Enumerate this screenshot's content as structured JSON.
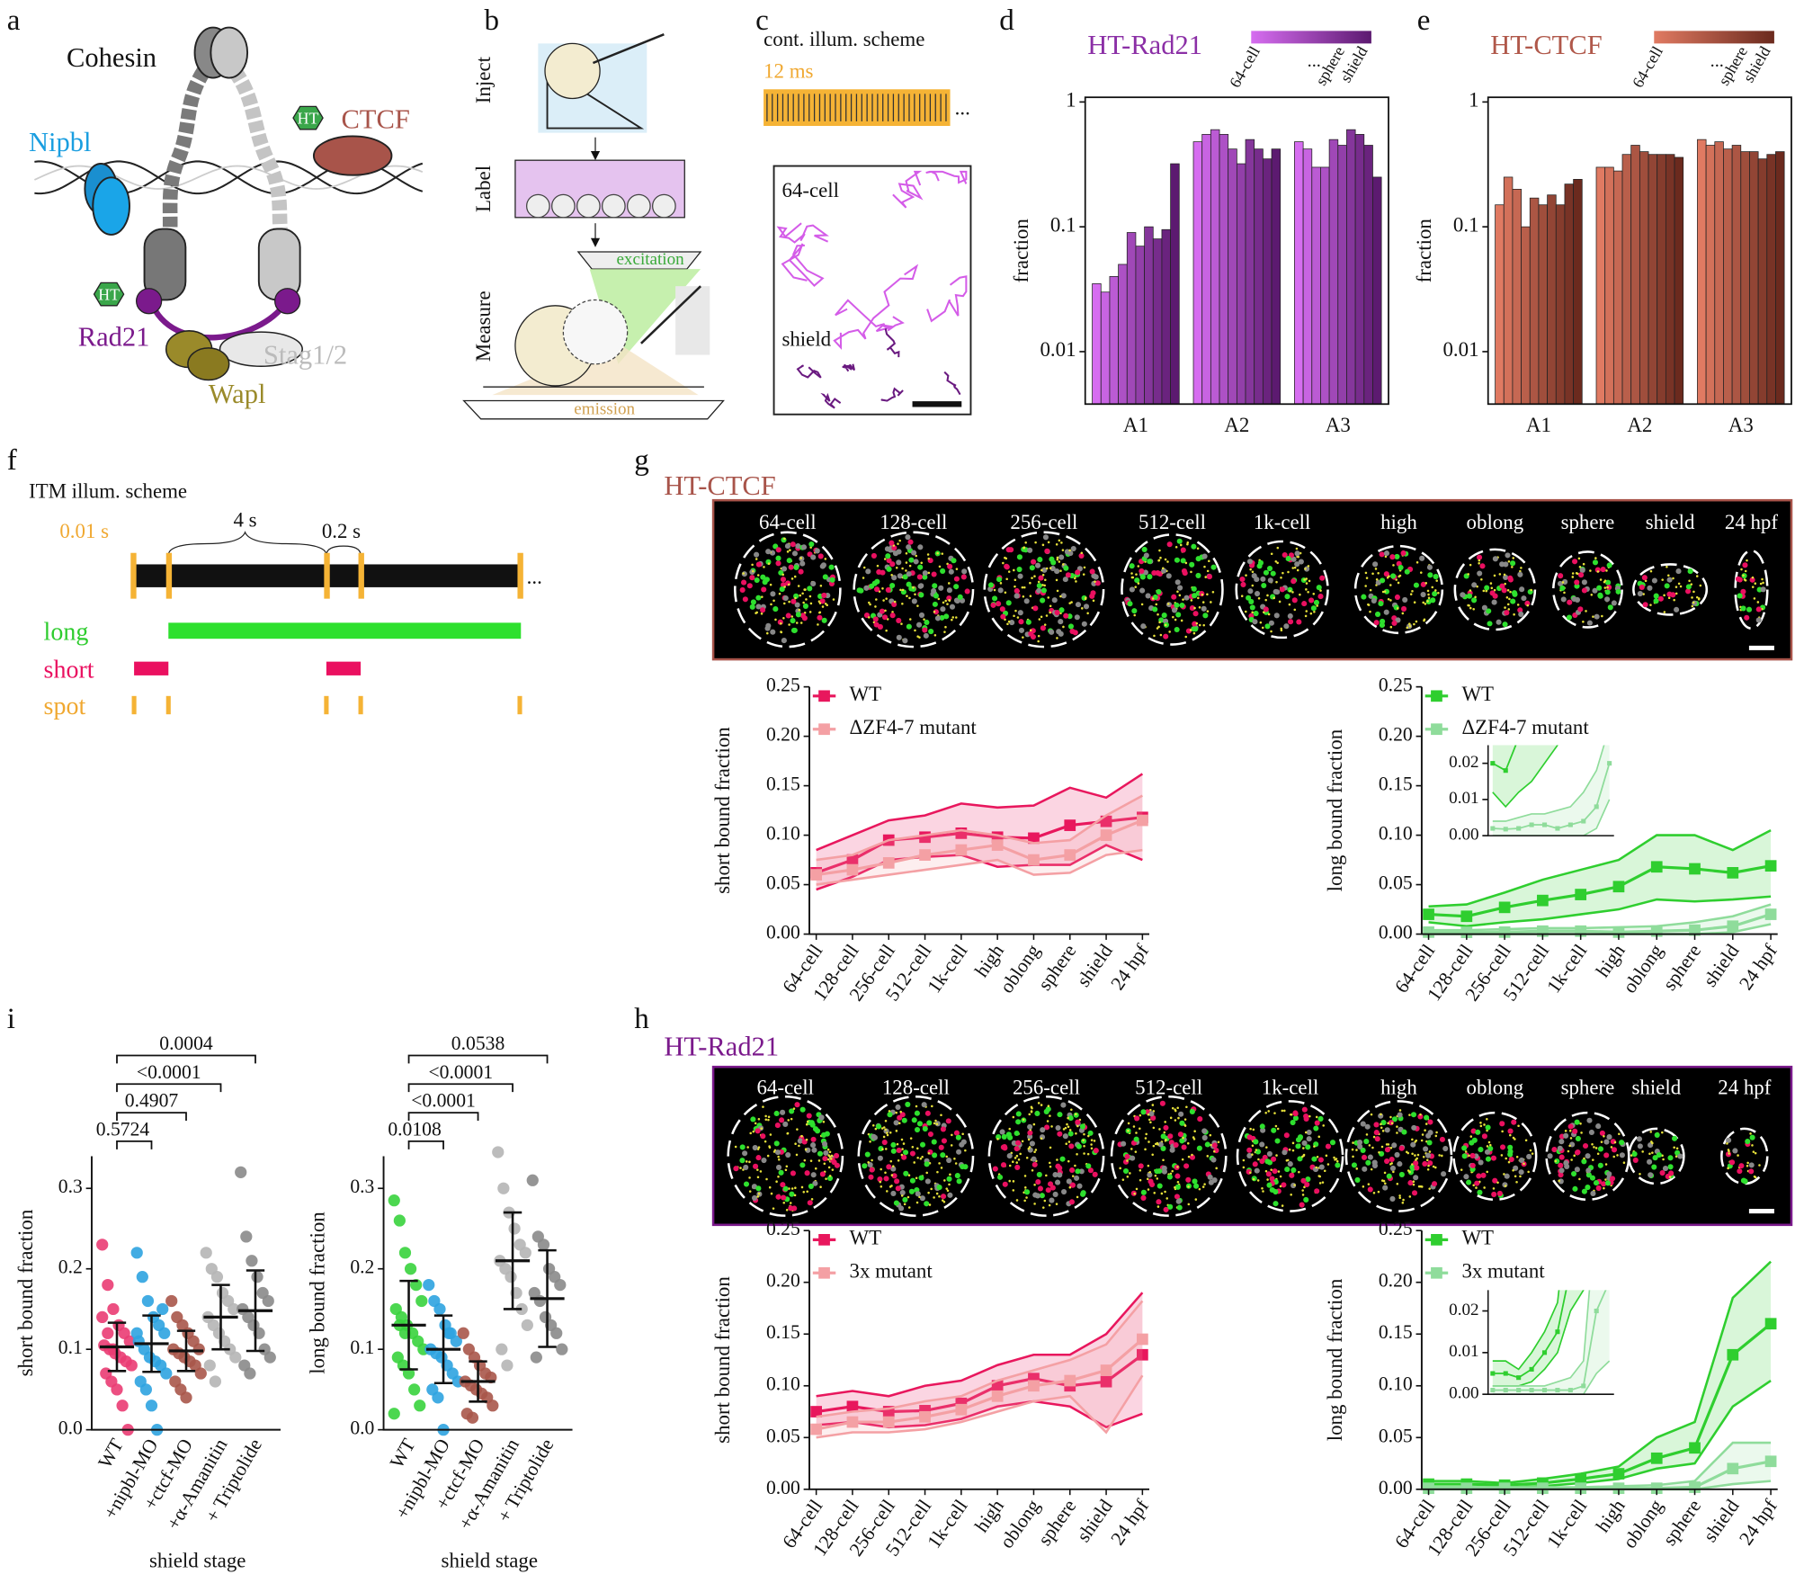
{
  "panel_labels": [
    "a",
    "b",
    "c",
    "d",
    "e",
    "f",
    "g",
    "h",
    "i"
  ],
  "panel_a": {
    "labels": [
      "Cohesin",
      "Nipbl",
      "HT",
      "CTCF",
      "HT",
      "Rad21",
      "Stag1/2",
      "Wapl"
    ]
  },
  "panel_b": {
    "steps": [
      "Inject",
      "Label",
      "Measure"
    ],
    "beams": [
      "excitation",
      "emission"
    ]
  },
  "panel_c": {
    "title": "cont. illum. scheme",
    "exposure": "12 ms",
    "ellipsis": "...",
    "tracks": [
      "64-cell",
      "shield"
    ]
  },
  "panel_f": {
    "title": "ITM illum. scheme",
    "exposure": "0.01 s",
    "long_interval": "4 s",
    "short_interval": "0.2 s",
    "ellipsis": "...",
    "rows": [
      "long",
      "short",
      "spot"
    ]
  },
  "panel_g": {
    "title": "HT-CTCF",
    "stages": [
      "64-cell",
      "128-cell",
      "256-cell",
      "512-cell",
      "1k-cell",
      "high",
      "oblong",
      "sphere",
      "shield",
      "24 hpf"
    ]
  },
  "panel_h": {
    "title": "HT-Rad21",
    "stages": [
      "64-cell",
      "128-cell",
      "256-cell",
      "512-cell",
      "1k-cell",
      "high",
      "oblong",
      "sphere",
      "shield",
      "24 hpf"
    ]
  },
  "chart_data": [
    {
      "type": "bar",
      "title": "HT-Rad21",
      "title_color": "#8b2fa6",
      "log_scale": true,
      "ylabel": "fraction",
      "categories": [
        "A1",
        "A2",
        "A3"
      ],
      "values": [
        [
          0.035,
          0.03,
          0.04,
          0.05,
          0.09,
          0.07,
          0.1,
          0.08,
          0.095,
          0.32
        ],
        [
          0.48,
          0.55,
          0.6,
          0.55,
          0.42,
          0.32,
          0.5,
          0.42,
          0.35,
          0.42
        ],
        [
          0.48,
          0.42,
          0.3,
          0.3,
          0.5,
          0.45,
          0.6,
          0.55,
          0.45,
          0.25
        ]
      ],
      "colors": [
        "#d66df0",
        "#5c1a70"
      ],
      "legend_labels": [
        "64-cell",
        "...",
        "sphere",
        "shield"
      ],
      "ylim": [
        0.0038,
        1.09
      ],
      "yticks": [
        0.01,
        0.1,
        1
      ]
    },
    {
      "type": "bar",
      "title": "HT-CTCF",
      "title_color": "#b0584a",
      "log_scale": true,
      "ylabel": "fraction",
      "categories": [
        "A1",
        "A2",
        "A3"
      ],
      "values": [
        [
          0.15,
          0.25,
          0.2,
          0.1,
          0.17,
          0.15,
          0.18,
          0.15,
          0.22,
          0.24
        ],
        [
          0.3,
          0.3,
          0.28,
          0.38,
          0.45,
          0.4,
          0.38,
          0.38,
          0.38,
          0.36
        ],
        [
          0.5,
          0.45,
          0.48,
          0.42,
          0.45,
          0.4,
          0.4,
          0.35,
          0.38,
          0.4
        ]
      ],
      "colors": [
        "#e07a62",
        "#6b2a1e"
      ],
      "legend_labels": [
        "64-cell",
        "...",
        "sphere",
        "shield"
      ],
      "ylim": [
        0.0038,
        1.09
      ],
      "yticks": [
        0.01,
        0.1,
        1
      ]
    },
    {
      "type": "line",
      "ylabel": "short bound fraction",
      "categories": [
        "64-cell",
        "128-cell",
        "256-cell",
        "512-cell",
        "1k-cell",
        "high",
        "oblong",
        "sphere",
        "shield",
        "24 hpf"
      ],
      "series": [
        {
          "name": "WT",
          "color": "#e8175d",
          "values": [
            0.062,
            0.075,
            0.095,
            0.098,
            0.102,
            0.098,
            0.097,
            0.11,
            0.114,
            0.118
          ],
          "upper": [
            0.085,
            0.1,
            0.115,
            0.12,
            0.132,
            0.128,
            0.13,
            0.148,
            0.138,
            0.162
          ],
          "lower": [
            0.045,
            0.058,
            0.075,
            0.078,
            0.08,
            0.068,
            0.07,
            0.07,
            0.09,
            0.075
          ]
        },
        {
          "name": "ΔZF4-7 mutant",
          "color": "#f4a0a4",
          "values": [
            0.06,
            0.065,
            0.072,
            0.08,
            0.085,
            0.09,
            0.075,
            0.08,
            0.1,
            0.115
          ],
          "upper": [
            0.075,
            0.08,
            0.095,
            0.1,
            0.105,
            0.1,
            0.092,
            0.095,
            0.12,
            0.14
          ],
          "lower": [
            0.05,
            0.055,
            0.06,
            0.065,
            0.07,
            0.075,
            0.06,
            0.062,
            0.08,
            0.085
          ]
        }
      ],
      "ylim": [
        0,
        0.25
      ],
      "yticks": [
        {
          "value": 0,
          "label": "0.00"
        },
        0.05,
        {
          "value": 0.1,
          "label": "0.10"
        },
        0.15,
        {
          "value": 0.2,
          "label": "0.20"
        },
        0.25
      ]
    },
    {
      "type": "line",
      "ylabel": "long bound fraction",
      "categories": [
        "64-cell",
        "128-cell",
        "256-cell",
        "512-cell",
        "1k-cell",
        "high",
        "oblong",
        "sphere",
        "shield",
        "24 hpf"
      ],
      "series": [
        {
          "name": "WT",
          "color": "#2fce2f",
          "values": [
            0.02,
            0.018,
            0.027,
            0.034,
            0.04,
            0.048,
            0.068,
            0.066,
            0.062,
            0.069
          ],
          "upper": [
            0.028,
            0.03,
            0.042,
            0.055,
            0.065,
            0.075,
            0.1,
            0.1,
            0.085,
            0.105
          ],
          "lower": [
            0.012,
            0.008,
            0.012,
            0.015,
            0.02,
            0.025,
            0.035,
            0.033,
            0.035,
            0.038
          ]
        },
        {
          "name": "ΔZF4-7 mutant",
          "color": "#8fdc9b",
          "values": [
            0.002,
            0.0018,
            0.002,
            0.003,
            0.003,
            0.002,
            0.003,
            0.004,
            0.008,
            0.02
          ],
          "upper": [
            0.004,
            0.004,
            0.005,
            0.006,
            0.006,
            0.007,
            0.008,
            0.012,
            0.018,
            0.03
          ],
          "lower": [
            0,
            0,
            0,
            0,
            0,
            0,
            0,
            0,
            0.002,
            0.01
          ]
        }
      ],
      "ylim": [
        0,
        0.25
      ],
      "yticks": [
        {
          "value": 0,
          "label": "0.00"
        },
        0.05,
        {
          "value": 0.1,
          "label": "0.10"
        },
        0.15,
        {
          "value": 0.2,
          "label": "0.20"
        },
        0.25
      ],
      "inset": {
        "ylim": [
          0,
          0.025
        ],
        "yticks": [
          {
            "value": 0,
            "label": "0.00"
          },
          0.01,
          0.02
        ]
      }
    },
    {
      "type": "line",
      "ylabel": "short bound fraction",
      "categories": [
        "64-cell",
        "128-cell",
        "256-cell",
        "512-cell",
        "1k-cell",
        "high",
        "oblong",
        "sphere",
        "shield",
        "24 hpf"
      ],
      "series": [
        {
          "name": "WT",
          "color": "#e8175d",
          "values": [
            0.075,
            0.08,
            0.075,
            0.076,
            0.083,
            0.1,
            0.107,
            0.1,
            0.104,
            0.13
          ],
          "upper": [
            0.09,
            0.095,
            0.09,
            0.1,
            0.105,
            0.12,
            0.13,
            0.13,
            0.15,
            0.19
          ],
          "lower": [
            0.062,
            0.065,
            0.06,
            0.062,
            0.068,
            0.08,
            0.085,
            0.08,
            0.06,
            0.073
          ]
        },
        {
          "name": "3x mutant",
          "color": "#f4a0a4",
          "values": [
            0.058,
            0.065,
            0.065,
            0.07,
            0.077,
            0.09,
            0.1,
            0.105,
            0.115,
            0.145
          ],
          "upper": [
            0.07,
            0.075,
            0.078,
            0.085,
            0.09,
            0.105,
            0.115,
            0.125,
            0.14,
            0.182
          ],
          "lower": [
            0.05,
            0.055,
            0.055,
            0.058,
            0.065,
            0.075,
            0.085,
            0.09,
            0.055,
            0.11
          ]
        }
      ],
      "ylim": [
        0,
        0.25
      ],
      "yticks": [
        {
          "value": 0,
          "label": "0.00"
        },
        0.05,
        {
          "value": 0.1,
          "label": "0.10"
        },
        0.15,
        {
          "value": 0.2,
          "label": "0.20"
        },
        0.25
      ]
    },
    {
      "type": "line",
      "ylabel": "long bound fraction",
      "categories": [
        "64-cell",
        "128-cell",
        "256-cell",
        "512-cell",
        "1k-cell",
        "high",
        "oblong",
        "sphere",
        "shield",
        "24 hpf"
      ],
      "series": [
        {
          "name": "WT",
          "color": "#2fce2f",
          "values": [
            0.005,
            0.005,
            0.004,
            0.006,
            0.01,
            0.015,
            0.03,
            0.04,
            0.13,
            0.16
          ],
          "upper": [
            0.008,
            0.008,
            0.006,
            0.01,
            0.015,
            0.022,
            0.05,
            0.065,
            0.185,
            0.22
          ],
          "lower": [
            0.002,
            0.002,
            0.002,
            0.003,
            0.006,
            0.01,
            0.02,
            0.025,
            0.08,
            0.105
          ]
        },
        {
          "name": "3x mutant",
          "color": "#8fdc9b",
          "values": [
            0.001,
            0.001,
            0.001,
            0.001,
            0.001,
            0.001,
            0.001,
            0.002,
            0.02,
            0.027
          ],
          "upper": [
            0.002,
            0.002,
            0.002,
            0.002,
            0.002,
            0.003,
            0.004,
            0.008,
            0.045,
            0.045
          ],
          "lower": [
            0,
            0,
            0,
            0,
            0,
            0,
            0,
            0,
            0.005,
            0.008
          ]
        }
      ],
      "ylim": [
        0,
        0.25
      ],
      "yticks": [
        {
          "value": 0,
          "label": "0.00"
        },
        0.05,
        {
          "value": 0.1,
          "label": "0.10"
        },
        0.15,
        {
          "value": 0.2,
          "label": "0.20"
        },
        0.25
      ],
      "inset": {
        "ylim": [
          0,
          0.025
        ],
        "yticks": [
          {
            "value": 0,
            "label": "0.00"
          },
          0.01,
          0.02
        ]
      }
    },
    {
      "type": "dot",
      "ylabel": "short bound fraction",
      "xlabel": "shield stage",
      "categories": [
        "WT",
        "+nipbl-MO",
        "+ctcf-MO",
        "+α-Amanitin",
        "+ Triptolide"
      ],
      "colors": [
        "#ea3c73",
        "#2ea3e0",
        "#a8574a",
        "#b5b5b5",
        "#8a8a8a"
      ],
      "points": [
        [
          0.23,
          0.18,
          0.15,
          0.13,
          0.12,
          0.11,
          0.105,
          0.1,
          0.095,
          0.09,
          0.085,
          0.08,
          0.07,
          0.06,
          0.05,
          0.03,
          0,
          0.14,
          0.12,
          0.1
        ],
        [
          0.22,
          0.19,
          0.16,
          0.14,
          0.13,
          0.12,
          0.11,
          0.1,
          0.09,
          0.085,
          0.08,
          0.07,
          0.06,
          0.05,
          0.03,
          0,
          0.15,
          0.12
        ],
        [
          0.16,
          0.14,
          0.13,
          0.12,
          0.11,
          0.1,
          0.1,
          0.095,
          0.09,
          0.085,
          0.08,
          0.07,
          0.06,
          0.05,
          0.04
        ],
        [
          0.22,
          0.2,
          0.19,
          0.17,
          0.16,
          0.15,
          0.14,
          0.13,
          0.12,
          0.11,
          0.1,
          0.09,
          0.08,
          0.06
        ],
        [
          0.32,
          0.24,
          0.21,
          0.19,
          0.17,
          0.16,
          0.15,
          0.14,
          0.13,
          0.12,
          0.1,
          0.09,
          0.08,
          0.07
        ]
      ],
      "values": [
        0.103,
        0.107,
        0.098,
        0.14,
        0.148
      ],
      "errors": [
        0.03,
        0.035,
        0.025,
        0.04,
        0.05
      ],
      "annotations": [
        "0.5724",
        "0.4907",
        "<0.0001",
        "0.0004"
      ],
      "ylim": [
        0,
        0.34
      ],
      "yticks": [
        {
          "value": 0,
          "label": "0.0"
        },
        0.1,
        0.2,
        0.3
      ]
    },
    {
      "type": "dot",
      "ylabel": "long bound fraction",
      "xlabel": "shield stage",
      "categories": [
        "WT",
        "+nipbl-MO",
        "+ctcf-MO",
        "+α-Amanitin",
        "+ Triptolide"
      ],
      "colors": [
        "#38d33d",
        "#2ea3e0",
        "#a8574a",
        "#b5b5b5",
        "#8a8a8a"
      ],
      "points": [
        [
          0.285,
          0.26,
          0.22,
          0.2,
          0.18,
          0.16,
          0.15,
          0.14,
          0.13,
          0.12,
          0.11,
          0.1,
          0.09,
          0.08,
          0.07,
          0.05,
          0.03,
          0.02,
          0.13,
          0.12
        ],
        [
          0.18,
          0.16,
          0.15,
          0.13,
          0.12,
          0.11,
          0.1,
          0.095,
          0.09,
          0.08,
          0.07,
          0.06,
          0.05,
          0.04,
          0,
          0.12
        ],
        [
          0.12,
          0.1,
          0.09,
          0.08,
          0.07,
          0.065,
          0.06,
          0.055,
          0.05,
          0.045,
          0.04,
          0.03,
          0.02,
          0.015
        ],
        [
          0.345,
          0.3,
          0.27,
          0.25,
          0.23,
          0.22,
          0.21,
          0.2,
          0.19,
          0.17,
          0.15,
          0.13,
          0.1,
          0.08
        ],
        [
          0.31,
          0.24,
          0.23,
          0.2,
          0.19,
          0.18,
          0.17,
          0.16,
          0.14,
          0.13,
          0.12,
          0.1,
          0.09
        ]
      ],
      "values": [
        0.13,
        0.1,
        0.06,
        0.21,
        0.163
      ],
      "errors": [
        0.055,
        0.042,
        0.025,
        0.06,
        0.06
      ],
      "annotations": [
        "0.0108",
        "<0.0001",
        "<0.0001",
        "0.0538"
      ],
      "ylim": [
        0,
        0.34
      ],
      "yticks": [
        {
          "value": 0,
          "label": "0.0"
        },
        0.1,
        0.2,
        0.3
      ]
    }
  ]
}
